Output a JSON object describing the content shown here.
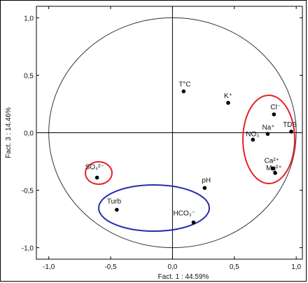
{
  "chart_data": {
    "type": "scatter",
    "title": "",
    "xlabel": "Fact. 1 : 44.59%",
    "ylabel": "Fact. 3 : 14.46%",
    "xlim": [
      -1.1,
      1.05
    ],
    "ylim": [
      -1.1,
      1.1
    ],
    "xticks": [
      "-1,0",
      "-0,5",
      "0,0",
      "0,5",
      "1,0"
    ],
    "yticks": [
      "1,0",
      "0,5",
      "0,0",
      "-0,5",
      "-1,0"
    ],
    "grid": false,
    "unit_circle": true,
    "points": [
      {
        "label": "T°C",
        "x": 0.09,
        "y": 0.36
      },
      {
        "label": "K⁺",
        "x": 0.45,
        "y": 0.26
      },
      {
        "label": "Cl⁻",
        "x": 0.82,
        "y": 0.16
      },
      {
        "label": "Na⁺",
        "x": 0.77,
        "y": -0.01
      },
      {
        "label": "NO₃⁻",
        "x": 0.65,
        "y": -0.06
      },
      {
        "label": "TDS",
        "x": 0.96,
        "y": 0.01
      },
      {
        "label": "Ca²⁺",
        "x": 0.81,
        "y": -0.31
      },
      {
        "label": "Mg²⁺",
        "x": 0.83,
        "y": -0.35
      },
      {
        "label": "SO₄²⁻",
        "x": -0.61,
        "y": -0.39
      },
      {
        "label": "pH",
        "x": 0.26,
        "y": -0.48
      },
      {
        "label": "Turb",
        "x": -0.45,
        "y": -0.67
      },
      {
        "label": "HCO₃⁻",
        "x": 0.17,
        "y": -0.78
      }
    ],
    "highlight_colors": {
      "red": "#e8202a",
      "blue": "#2a2ab0"
    }
  }
}
